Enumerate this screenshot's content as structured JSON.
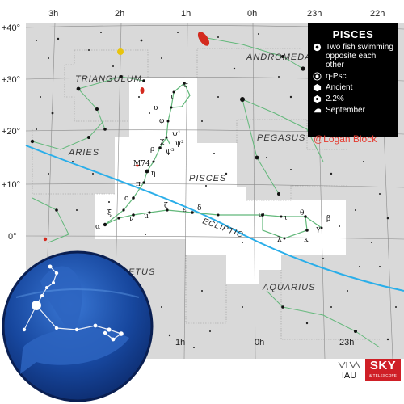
{
  "ra_labels": [
    "3h",
    "2h",
    "1h",
    "0h",
    "23h",
    "22h"
  ],
  "ra_bottom_labels": [
    "1h",
    "0h",
    "23h"
  ],
  "dec_labels": [
    "+40°",
    "+30°",
    "+20°",
    "+10°",
    "0°"
  ],
  "constellations": {
    "pisces": "PISCES",
    "triangulum": "TRIANGULUM",
    "andromeda": "ANDROMEDA",
    "pegasus": "PEGASUS",
    "aries": "ARIES",
    "cetus": "CETUS",
    "aquarius": "AQUARIUS"
  },
  "ecliptic_label": "ECLIPTIC",
  "star_labels": {
    "sigma": "σ",
    "tau": "τ",
    "upsilon": "υ",
    "phi": "φ",
    "chi": "χ",
    "psi1": "ψ¹",
    "psi2": "ψ²",
    "psi3": "ψ³",
    "rho": "ρ",
    "eta": "η",
    "pi": "π",
    "omicron": "ο",
    "xi": "ξ",
    "alpha": "α",
    "nu": "ν",
    "mu": "μ",
    "zeta": "ζ",
    "epsilon": "ε",
    "delta": "δ",
    "omega": "ω",
    "iota": "ι",
    "theta": "θ",
    "lambda": "λ",
    "kappa": "κ",
    "gamma": "γ",
    "beta": "β",
    "m74": "M74"
  },
  "info_panel": {
    "title": "PISCES",
    "meaning": "Two fish swimming opposite each other",
    "brightest_star": "η-Psc",
    "origin": "Ancient",
    "sky_area": "2.2%",
    "best_month": "September",
    "icons": [
      "fish-meaning-icon",
      "star-icon",
      "origin-icon",
      "area-icon",
      "calendar-icon"
    ]
  },
  "credit": "@Logan Block",
  "logos": {
    "iau": "IAU",
    "sky": "SKY",
    "sky_sub": "& TELESCOPE"
  },
  "colors": {
    "outside_region": "#d9d9d9",
    "constellation_region": "#ffffff",
    "constellation_lines": "#62b87a",
    "ecliptic": "#2aaee9",
    "boundary": "#b5b5b5",
    "grid": "#8a8a8a",
    "badge_dark": "#0c2a6b",
    "badge_light": "#3a78d6",
    "sky_red": "#cf1f26",
    "credit_red": "#e53a2f"
  }
}
